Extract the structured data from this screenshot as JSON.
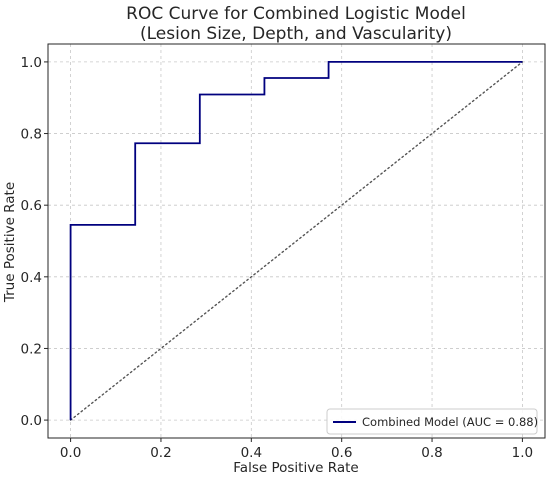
{
  "chart_data": {
    "type": "line",
    "title_lines": [
      "ROC Curve for Combined Logistic Model",
      "(Lesion Size, Depth, and Vascularity)"
    ],
    "xlabel": "False Positive Rate",
    "ylabel": "True Positive Rate",
    "xlim": [
      -0.05,
      1.05
    ],
    "ylim": [
      -0.05,
      1.05
    ],
    "xticks": [
      0.0,
      0.2,
      0.4,
      0.6,
      0.8,
      1.0
    ],
    "yticks": [
      0.0,
      0.2,
      0.4,
      0.6,
      0.8,
      1.0
    ],
    "xtick_labels": [
      "0.0",
      "0.2",
      "0.4",
      "0.6",
      "0.8",
      "1.0"
    ],
    "ytick_labels": [
      "0.0",
      "0.2",
      "0.4",
      "0.6",
      "0.8",
      "1.0"
    ],
    "grid": true,
    "legend_position": "lower-right",
    "series": [
      {
        "name": "Combined Model (AUC = 0.88)",
        "color": "#00007f",
        "style": "step",
        "x": [
          0.0,
          0.0,
          0.143,
          0.143,
          0.286,
          0.286,
          0.429,
          0.429,
          0.571,
          0.571,
          1.0
        ],
        "y": [
          0.0,
          0.545,
          0.545,
          0.773,
          0.773,
          0.909,
          0.909,
          0.955,
          0.955,
          1.0,
          1.0
        ]
      }
    ],
    "reference_line": {
      "color": "#555555",
      "style": "dotted",
      "x": [
        0.0,
        1.0
      ],
      "y": [
        0.0,
        1.0
      ]
    }
  }
}
